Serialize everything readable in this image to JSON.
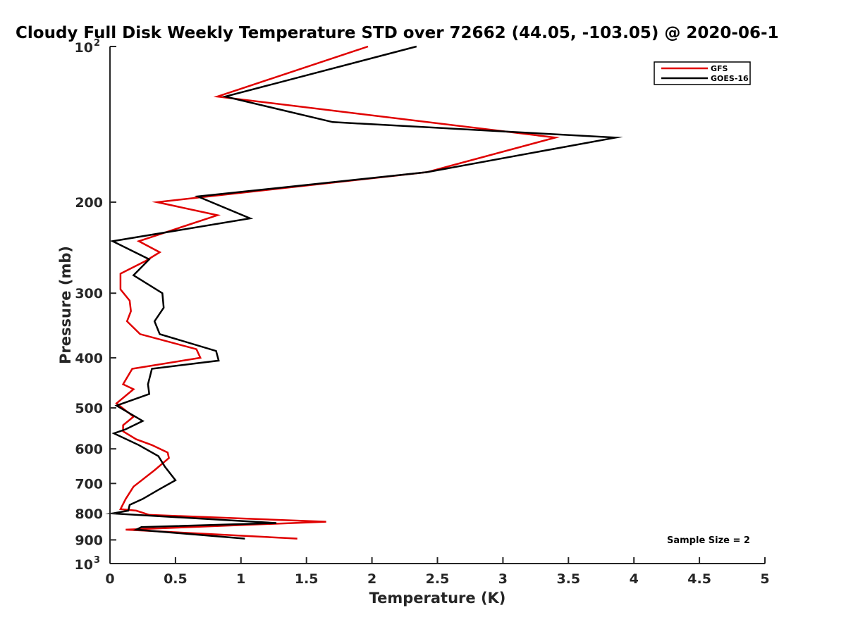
{
  "chart_data": {
    "type": "line",
    "title": "Cloudy Full Disk Weekly Temperature STD over 72662 (44.05, -103.05) @ 2020-06-1",
    "xlabel": "Temperature (K)",
    "ylabel": "Pressure (mb)",
    "xlim": [
      0,
      5
    ],
    "ylim": [
      100,
      1000
    ],
    "y_scale": "log",
    "y_reversed": true,
    "x_ticks": [
      "0",
      "0.5",
      "1",
      "1.5",
      "2",
      "2.5",
      "3",
      "3.5",
      "4",
      "4.5",
      "5"
    ],
    "y_ticks": [
      {
        "value": 100,
        "base": "10",
        "exp": "2"
      },
      {
        "value": 200,
        "label": "200"
      },
      {
        "value": 300,
        "label": "300"
      },
      {
        "value": 400,
        "label": "400"
      },
      {
        "value": 500,
        "label": "500"
      },
      {
        "value": 600,
        "label": "600"
      },
      {
        "value": 700,
        "label": "700"
      },
      {
        "value": 800,
        "label": "800"
      },
      {
        "value": 900,
        "label": "900"
      },
      {
        "value": 1000,
        "base": "10",
        "exp": "3"
      }
    ],
    "legend_position": "top-right",
    "grid": false,
    "annotation": "Sample Size = 2",
    "series": [
      {
        "name": "GFS",
        "color": "#e00000",
        "points": [
          [
            1.97,
            100
          ],
          [
            0.82,
            125
          ],
          [
            3.4,
            150
          ],
          [
            2.42,
            175
          ],
          [
            0.36,
            200
          ],
          [
            0.82,
            212
          ],
          [
            0.22,
            238
          ],
          [
            0.38,
            250
          ],
          [
            0.27,
            260
          ],
          [
            0.08,
            275
          ],
          [
            0.08,
            295
          ],
          [
            0.15,
            310
          ],
          [
            0.16,
            325
          ],
          [
            0.13,
            340
          ],
          [
            0.23,
            360
          ],
          [
            0.66,
            385
          ],
          [
            0.69,
            400
          ],
          [
            0.17,
            420
          ],
          [
            0.1,
            450
          ],
          [
            0.18,
            460
          ],
          [
            0.05,
            490
          ],
          [
            0.18,
            520
          ],
          [
            0.1,
            540
          ],
          [
            0.1,
            555
          ],
          [
            0.2,
            575
          ],
          [
            0.32,
            590
          ],
          [
            0.44,
            610
          ],
          [
            0.45,
            625
          ],
          [
            0.34,
            660
          ],
          [
            0.18,
            710
          ],
          [
            0.12,
            750
          ],
          [
            0.08,
            785
          ],
          [
            0.2,
            790
          ],
          [
            0.3,
            805
          ],
          [
            1.65,
            830
          ],
          [
            0.12,
            860
          ],
          [
            1.43,
            895
          ]
        ]
      },
      {
        "name": "GOES-16",
        "color": "#000000",
        "points": [
          [
            2.34,
            100
          ],
          [
            0.88,
            125
          ],
          [
            1.7,
            140
          ],
          [
            3.86,
            150
          ],
          [
            2.42,
            175
          ],
          [
            0.67,
            195
          ],
          [
            1.07,
            215
          ],
          [
            0.02,
            238
          ],
          [
            0.3,
            258
          ],
          [
            0.18,
            277
          ],
          [
            0.4,
            300
          ],
          [
            0.41,
            320
          ],
          [
            0.34,
            340
          ],
          [
            0.38,
            360
          ],
          [
            0.81,
            388
          ],
          [
            0.83,
            405
          ],
          [
            0.32,
            420
          ],
          [
            0.29,
            450
          ],
          [
            0.3,
            470
          ],
          [
            0.05,
            495
          ],
          [
            0.25,
            530
          ],
          [
            0.12,
            550
          ],
          [
            0.03,
            560
          ],
          [
            0.22,
            590
          ],
          [
            0.37,
            620
          ],
          [
            0.42,
            650
          ],
          [
            0.5,
            690
          ],
          [
            0.37,
            720
          ],
          [
            0.25,
            750
          ],
          [
            0.15,
            770
          ],
          [
            0.14,
            790
          ],
          [
            0.02,
            800
          ],
          [
            1.27,
            835
          ],
          [
            0.24,
            850
          ],
          [
            0.2,
            860
          ],
          [
            1.03,
            895
          ]
        ]
      }
    ]
  }
}
